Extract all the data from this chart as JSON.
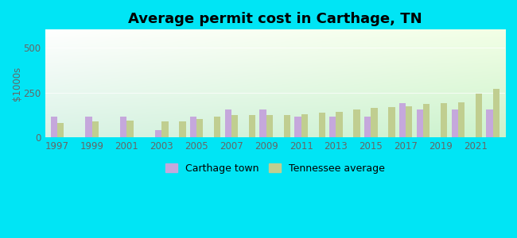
{
  "title": "Average permit cost in Carthage, TN",
  "ylabel": "$1000s",
  "bg_outer": "#00e5f5",
  "ylim": [
    0,
    600
  ],
  "yticks": [
    0,
    250,
    500
  ],
  "years": [
    1997,
    1998,
    1999,
    2000,
    2001,
    2002,
    2003,
    2004,
    2005,
    2006,
    2007,
    2008,
    2009,
    2010,
    2011,
    2012,
    2013,
    2014,
    2015,
    2016,
    2017,
    2018,
    2019,
    2020,
    2021,
    2022
  ],
  "carthage": [
    115,
    0,
    115,
    0,
    115,
    0,
    40,
    0,
    115,
    0,
    155,
    0,
    155,
    0,
    115,
    0,
    115,
    0,
    115,
    0,
    190,
    155,
    0,
    155,
    0,
    155
  ],
  "tennessee": [
    80,
    0,
    90,
    0,
    95,
    0,
    90,
    90,
    105,
    115,
    125,
    125,
    125,
    125,
    130,
    140,
    145,
    155,
    165,
    170,
    175,
    185,
    190,
    195,
    245,
    270
  ],
  "bar_color_town": "#c5a8dc",
  "bar_color_state": "#c0ce90",
  "legend_town": "Carthage town",
  "legend_state": "Tennessee average",
  "title_fontsize": 13,
  "tick_fontsize": 8.5,
  "legend_fontsize": 9
}
